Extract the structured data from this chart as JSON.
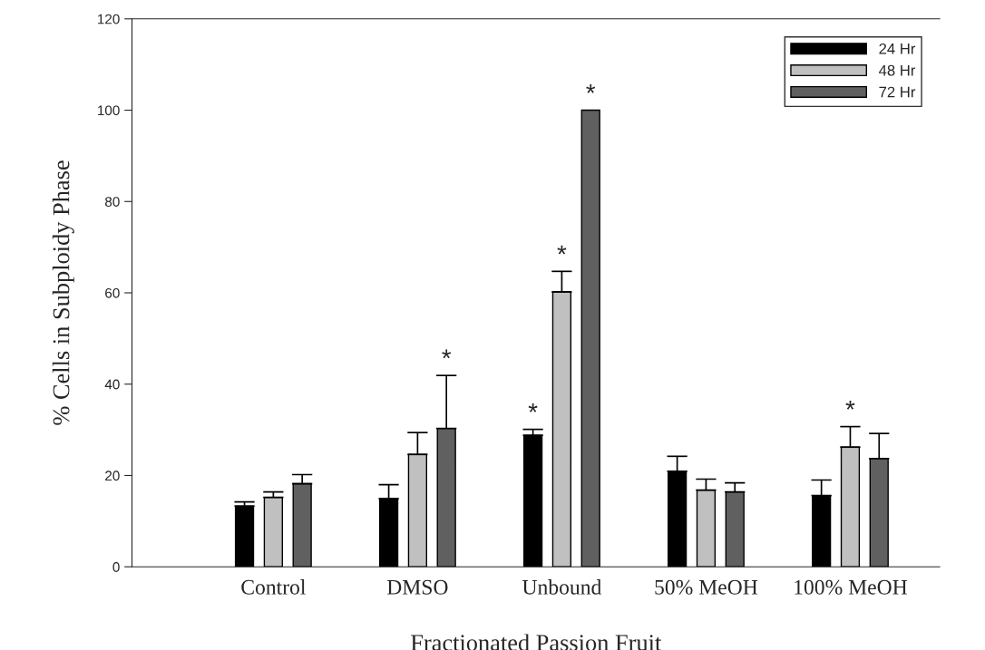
{
  "chart_data": {
    "type": "bar",
    "xlabel": "Fractionated Passion Fruit",
    "ylabel": "% Cells in Subploidy Phase",
    "categories": [
      "Control",
      "DMSO",
      "Unbound",
      "50% MeOH",
      "100% MeOH"
    ],
    "series": [
      {
        "name": "24 Hr",
        "color": "#000000",
        "values": [
          13.3,
          14.9,
          28.8,
          20.9,
          15.6
        ],
        "errors": [
          [
            13.3,
            14.2
          ],
          [
            14.9,
            18.0
          ],
          [
            28.8,
            30.1
          ],
          [
            20.9,
            24.2
          ],
          [
            15.6,
            19.0
          ]
        ]
      },
      {
        "name": "48 Hr",
        "color": "#c0c0c0",
        "values": [
          15.2,
          24.6,
          60.2,
          16.8,
          26.2
        ],
        "errors": [
          [
            15.2,
            16.4
          ],
          [
            24.6,
            29.4
          ],
          [
            60.2,
            64.7
          ],
          [
            16.8,
            19.2
          ],
          [
            26.2,
            30.7
          ]
        ]
      },
      {
        "name": "72 Hr",
        "color": "#606060",
        "values": [
          18.2,
          30.3,
          100,
          16.4,
          23.7
        ],
        "errors": [
          [
            18.2,
            20.2
          ],
          [
            30.3,
            41.9
          ],
          null,
          [
            16.4,
            18.4
          ],
          [
            23.7,
            29.2
          ]
        ]
      }
    ],
    "ylim": [
      0,
      120
    ],
    "yticks": [
      0,
      20,
      40,
      60,
      80,
      100,
      120
    ],
    "grid": false,
    "legend": "top right",
    "annotations": [
      {
        "text": "*",
        "y": 41.9
      },
      {
        "text": "*",
        "y": 30.1
      },
      {
        "text": "*",
        "x": "Unbound",
        "y": 64.7
      },
      {
        "text": "*",
        "y": 100
      },
      {
        "text": "*",
        "x": "100% MeOH",
        "y": 30.7
      }
    ]
  }
}
